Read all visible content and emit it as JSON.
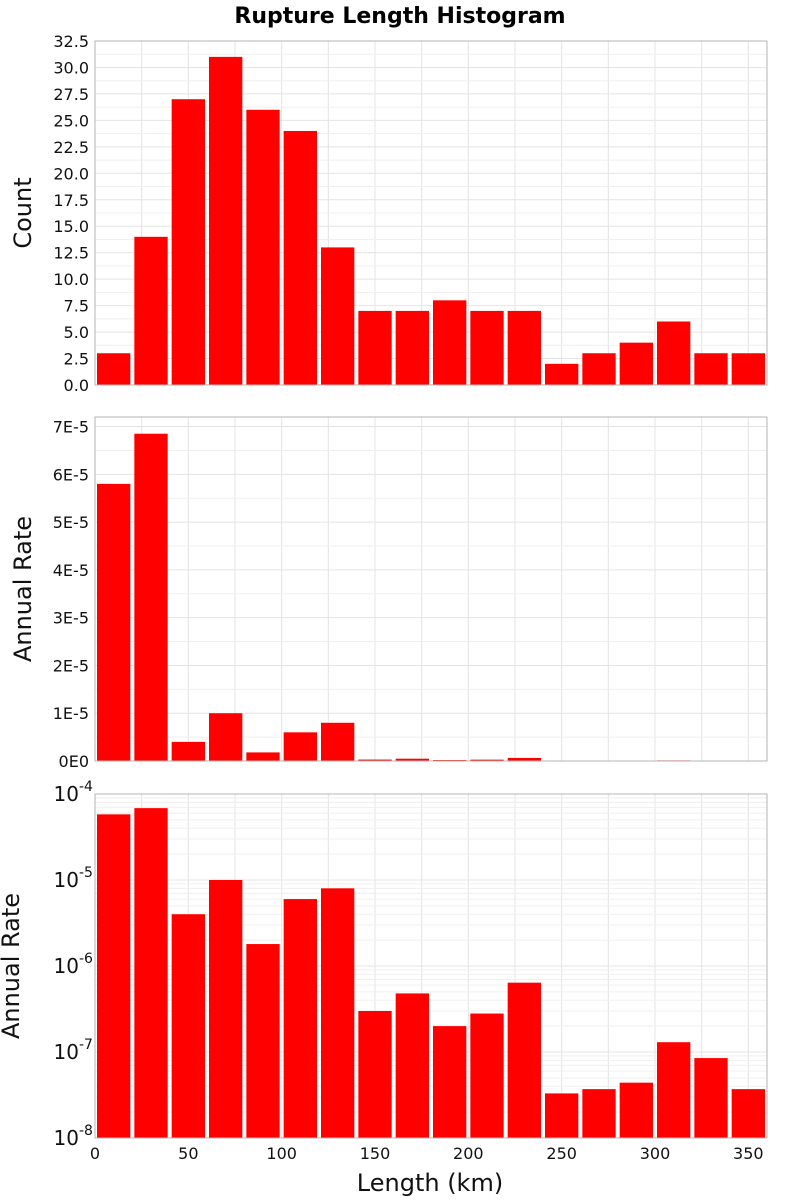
{
  "chart_data": {
    "type": "bar",
    "title": "Rupture Length Histogram",
    "xlabel": "Length (km)",
    "xlim": [
      0,
      360
    ],
    "bin_width": 20,
    "categories": [
      10,
      30,
      50,
      70,
      90,
      110,
      130,
      150,
      170,
      190,
      210,
      230,
      250,
      270,
      290,
      310,
      330,
      350
    ],
    "x_ticks": [
      0,
      50,
      100,
      150,
      200,
      250,
      300,
      350
    ],
    "panels": [
      {
        "ylabel": "Count",
        "yscale": "linear",
        "ylim": [
          0,
          32.5
        ],
        "y_ticks": [
          0,
          2.5,
          5,
          7.5,
          10,
          12.5,
          15,
          17.5,
          20,
          22.5,
          25,
          27.5,
          30,
          32.5
        ],
        "y_tick_labels": [
          "0.0",
          "2.5",
          "5.0",
          "7.5",
          "10.0",
          "12.5",
          "15.0",
          "17.5",
          "20.0",
          "22.5",
          "25.0",
          "27.5",
          "30.0",
          "32.5"
        ],
        "values": [
          3,
          14,
          27,
          31,
          26,
          24,
          13,
          7,
          7,
          8,
          7,
          7,
          2,
          3,
          4,
          6,
          3,
          3
        ]
      },
      {
        "ylabel": "Annual Rate",
        "yscale": "linear",
        "ylim": [
          0,
          7.2e-05
        ],
        "y_ticks": [
          0,
          1e-05,
          2e-05,
          3e-05,
          4e-05,
          5e-05,
          6e-05,
          7e-05
        ],
        "y_tick_labels": [
          "0E0",
          "1E-5",
          "2E-5",
          "3E-5",
          "4E-5",
          "5E-5",
          "6E-5",
          "7E-5"
        ],
        "values": [
          5.8e-05,
          6.85e-05,
          4e-06,
          1e-05,
          1.8e-06,
          6e-06,
          8e-06,
          3e-07,
          4.8e-07,
          2e-07,
          2.8e-07,
          6.4e-07,
          3.3e-08,
          3.7e-08,
          4.4e-08,
          1.3e-07,
          8.5e-08,
          3.7e-08
        ]
      },
      {
        "ylabel": "Annual Rate",
        "yscale": "log",
        "ylim": [
          1e-08,
          0.0001
        ],
        "y_ticks": [
          1e-08,
          1e-07,
          1e-06,
          1e-05,
          0.0001
        ],
        "y_tick_labels": [
          {
            "base": "10",
            "exp": "-8"
          },
          {
            "base": "10",
            "exp": "-7"
          },
          {
            "base": "10",
            "exp": "-6"
          },
          {
            "base": "10",
            "exp": "-5"
          },
          {
            "base": "10",
            "exp": "-4"
          }
        ],
        "values": [
          5.8e-05,
          6.85e-05,
          4e-06,
          1e-05,
          1.8e-06,
          6e-06,
          8e-06,
          3e-07,
          4.8e-07,
          2e-07,
          2.8e-07,
          6.4e-07,
          3.3e-08,
          3.7e-08,
          4.4e-08,
          1.3e-07,
          8.5e-08,
          3.7e-08
        ]
      }
    ],
    "colors": {
      "bar": "#ff0000"
    }
  }
}
